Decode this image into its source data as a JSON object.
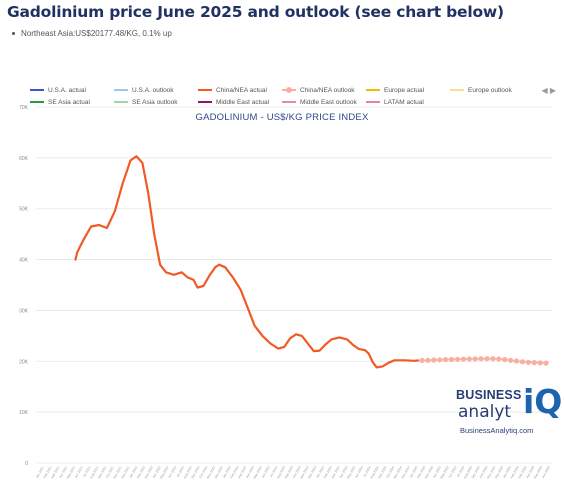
{
  "header": {
    "title": "Gadolinium price June 2025 and outlook (see chart below)",
    "subtitle": "Northeast Asia:US$20177.48/KG, 0.1% up"
  },
  "legend": {
    "row1": [
      {
        "label": "U.S.A. actual",
        "color": "#3a55c8",
        "style": "line"
      },
      {
        "label": "U.S.A. outlook",
        "color": "#9fc8e6",
        "style": "line"
      },
      {
        "label": "China/NEA actual",
        "color": "#f15a24",
        "style": "line"
      },
      {
        "label": "China/NEA outlook",
        "color": "#f7b0a0",
        "style": "dots"
      },
      {
        "label": "Europe actual",
        "color": "#f5b700",
        "style": "line"
      },
      {
        "label": "Europe outlook",
        "color": "#f8e08a",
        "style": "line"
      }
    ],
    "row2": [
      {
        "label": "SE Asia actual",
        "color": "#1f9e3a",
        "style": "line"
      },
      {
        "label": "SE Asia outlook",
        "color": "#9fd5a8",
        "style": "line"
      },
      {
        "label": "Middle East actual",
        "color": "#8a1a6a",
        "style": "line"
      },
      {
        "label": "Middle East outlook",
        "color": "#e08ab8",
        "style": "line"
      },
      {
        "label": "LATAM actual",
        "color": "#f07ab0",
        "style": "line"
      }
    ],
    "nav": "◀ ▶"
  },
  "logo": {
    "line1": "BUSINESS",
    "line2": "analyt",
    "mark": "iQ",
    "url": "BusinessAnalytiq.com"
  },
  "chart_data": {
    "type": "line",
    "title": "GADOLINIUM - US$/KG PRICE INDEX",
    "xlabel": "",
    "ylabel": "",
    "ylim": [
      0,
      70000
    ],
    "yticks": [
      "0",
      "10K",
      "20K",
      "30K",
      "40K",
      "50K",
      "60K",
      "70K"
    ],
    "x": [
      "Jan 2021",
      "Apr 2021",
      "Jul 2021",
      "Oct 2021",
      "Jan 2022",
      "Apr 2022",
      "Jul 2022",
      "Oct 2022",
      "Jan 2023",
      "Apr 2023",
      "Jul 2023",
      "Oct 2023",
      "Jan 2024",
      "Apr 2024",
      "Jul 2024",
      "Oct 2024",
      "Jan 2025",
      "Apr 2025",
      "Jun 2025",
      "Jul 2025",
      "Oct 2025",
      "Jan 2026",
      "Apr 2026",
      "Jul 2026",
      "Oct 2026"
    ],
    "series": [
      {
        "name": "China/NEA actual",
        "color": "#f15a24",
        "points": [
          [
            1,
            40000
          ],
          [
            1.05,
            41500
          ],
          [
            1.2,
            43800
          ],
          [
            1.4,
            46500
          ],
          [
            1.6,
            46800
          ],
          [
            1.8,
            46200
          ],
          [
            2.0,
            49500
          ],
          [
            2.2,
            55000
          ],
          [
            2.4,
            59500
          ],
          [
            2.55,
            60300
          ],
          [
            2.7,
            59000
          ],
          [
            2.85,
            53000
          ],
          [
            3.0,
            45000
          ],
          [
            3.15,
            39000
          ],
          [
            3.3,
            37500
          ],
          [
            3.5,
            37000
          ],
          [
            3.7,
            37500
          ],
          [
            3.85,
            36500
          ],
          [
            4.0,
            36000
          ],
          [
            4.1,
            34500
          ],
          [
            4.25,
            34800
          ],
          [
            4.4,
            36800
          ],
          [
            4.55,
            38500
          ],
          [
            4.65,
            39000
          ],
          [
            4.8,
            38500
          ],
          [
            5.0,
            36500
          ],
          [
            5.2,
            34000
          ],
          [
            5.4,
            30000
          ],
          [
            5.55,
            27000
          ],
          [
            5.75,
            25000
          ],
          [
            5.95,
            23500
          ],
          [
            6.15,
            22500
          ],
          [
            6.3,
            22800
          ],
          [
            6.45,
            24500
          ],
          [
            6.6,
            25300
          ],
          [
            6.75,
            25000
          ],
          [
            6.9,
            23500
          ],
          [
            7.05,
            22000
          ],
          [
            7.2,
            22100
          ],
          [
            7.35,
            23300
          ],
          [
            7.5,
            24300
          ],
          [
            7.7,
            24700
          ],
          [
            7.9,
            24300
          ],
          [
            8.05,
            23200
          ],
          [
            8.2,
            22400
          ],
          [
            8.35,
            22200
          ],
          [
            8.45,
            21500
          ],
          [
            8.55,
            19800
          ],
          [
            8.65,
            18800
          ],
          [
            8.8,
            19000
          ],
          [
            8.95,
            19700
          ],
          [
            9.1,
            20200
          ],
          [
            9.35,
            20200
          ],
          [
            9.6,
            20100
          ],
          [
            9.7,
            20150
          ]
        ]
      },
      {
        "name": "China/NEA outlook",
        "color": "#f7b0a0",
        "points": [
          [
            9.8,
            20180
          ],
          [
            9.95,
            20200
          ],
          [
            10.1,
            20250
          ],
          [
            10.25,
            20300
          ],
          [
            10.4,
            20330
          ],
          [
            10.55,
            20360
          ],
          [
            10.7,
            20400
          ],
          [
            10.85,
            20420
          ],
          [
            11.0,
            20450
          ],
          [
            11.15,
            20480
          ],
          [
            11.3,
            20500
          ],
          [
            11.45,
            20500
          ],
          [
            11.6,
            20500
          ],
          [
            11.75,
            20450
          ],
          [
            11.9,
            20350
          ],
          [
            12.05,
            20200
          ],
          [
            12.2,
            20050
          ],
          [
            12.35,
            19900
          ],
          [
            12.5,
            19800
          ],
          [
            12.65,
            19750
          ],
          [
            12.8,
            19700
          ],
          [
            12.95,
            19650
          ]
        ]
      }
    ],
    "x_tick_labels": [
      "Jan 2021",
      "Feb 2021",
      "Mar 2021",
      "Apr 2021",
      "May 2021",
      "Jun 2021",
      "Jul 2021",
      "Aug 2021",
      "Sep 2021",
      "Oct 2021",
      "Nov 2021",
      "Dec 2021",
      "Jan 2022",
      "Feb 2022",
      "Mar 2022",
      "Apr 2022",
      "May 2022",
      "Jun 2022",
      "Jul 2022",
      "Aug 2022",
      "Sep 2022",
      "Oct 2022",
      "Nov 2022",
      "Dec 2022",
      "Jan 2023",
      "Feb 2023",
      "Mar 2023",
      "Apr 2023",
      "May 2023",
      "Jun 2023",
      "Jul 2023",
      "Aug 2023",
      "Sep 2023",
      "Oct 2023",
      "Nov 2023",
      "Dec 2023",
      "Jan 2024",
      "Feb 2024",
      "Mar 2024",
      "Apr 2024",
      "May 2024",
      "Jun 2024",
      "Jul 2024",
      "Aug 2024",
      "Sep 2024",
      "Oct 2024",
      "Nov 2024",
      "Dec 2024",
      "Jan 2025",
      "Feb 2025",
      "Mar 2025",
      "Apr 2025",
      "May 2025",
      "Jun 2025",
      "Jul 2025",
      "Aug 2025",
      "Sep 2025",
      "Oct 2025",
      "Nov 2025",
      "Dec 2025",
      "Jan 2026",
      "Feb 2026",
      "Mar 2026",
      "Apr 2026",
      "May 2026",
      "Jun 2026"
    ]
  }
}
